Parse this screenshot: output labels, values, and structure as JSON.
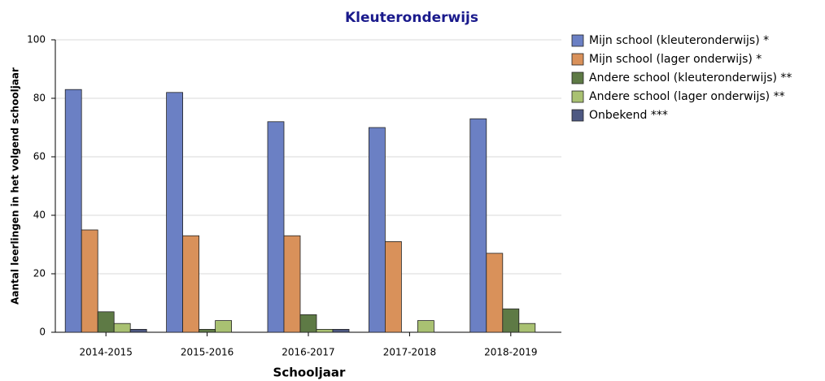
{
  "chart_data": {
    "type": "bar",
    "title": "Kleuteronderwijs",
    "x_label": "Schooljaar",
    "y_label": "Aantal leerlingen in het volgend schooljaar",
    "categories": [
      "2014-2015",
      "2015-2016",
      "2016-2017",
      "2017-2018",
      "2018-2019"
    ],
    "series": [
      {
        "name": "Mijn school (kleuteronderwijs) *",
        "color": "#6b80c4",
        "values": [
          83,
          82,
          72,
          70,
          73
        ]
      },
      {
        "name": "Mijn school (lager onderwijs) *",
        "color": "#d9915a",
        "values": [
          35,
          33,
          33,
          31,
          27
        ]
      },
      {
        "name": "Andere school (kleuteronderwijs) **",
        "color": "#5e7a45",
        "values": [
          7,
          1,
          6,
          0,
          8
        ]
      },
      {
        "name": "Andere school (lager onderwijs) **",
        "color": "#a9c172",
        "values": [
          3,
          4,
          1,
          4,
          3
        ]
      },
      {
        "name": "Onbekend ***",
        "color": "#4d5882",
        "values": [
          1,
          0,
          1,
          0,
          0
        ]
      }
    ],
    "ylim": [
      0,
      100
    ],
    "yticks": [
      0,
      20,
      40,
      60,
      80,
      100
    ],
    "grid": true,
    "legend": "right"
  }
}
